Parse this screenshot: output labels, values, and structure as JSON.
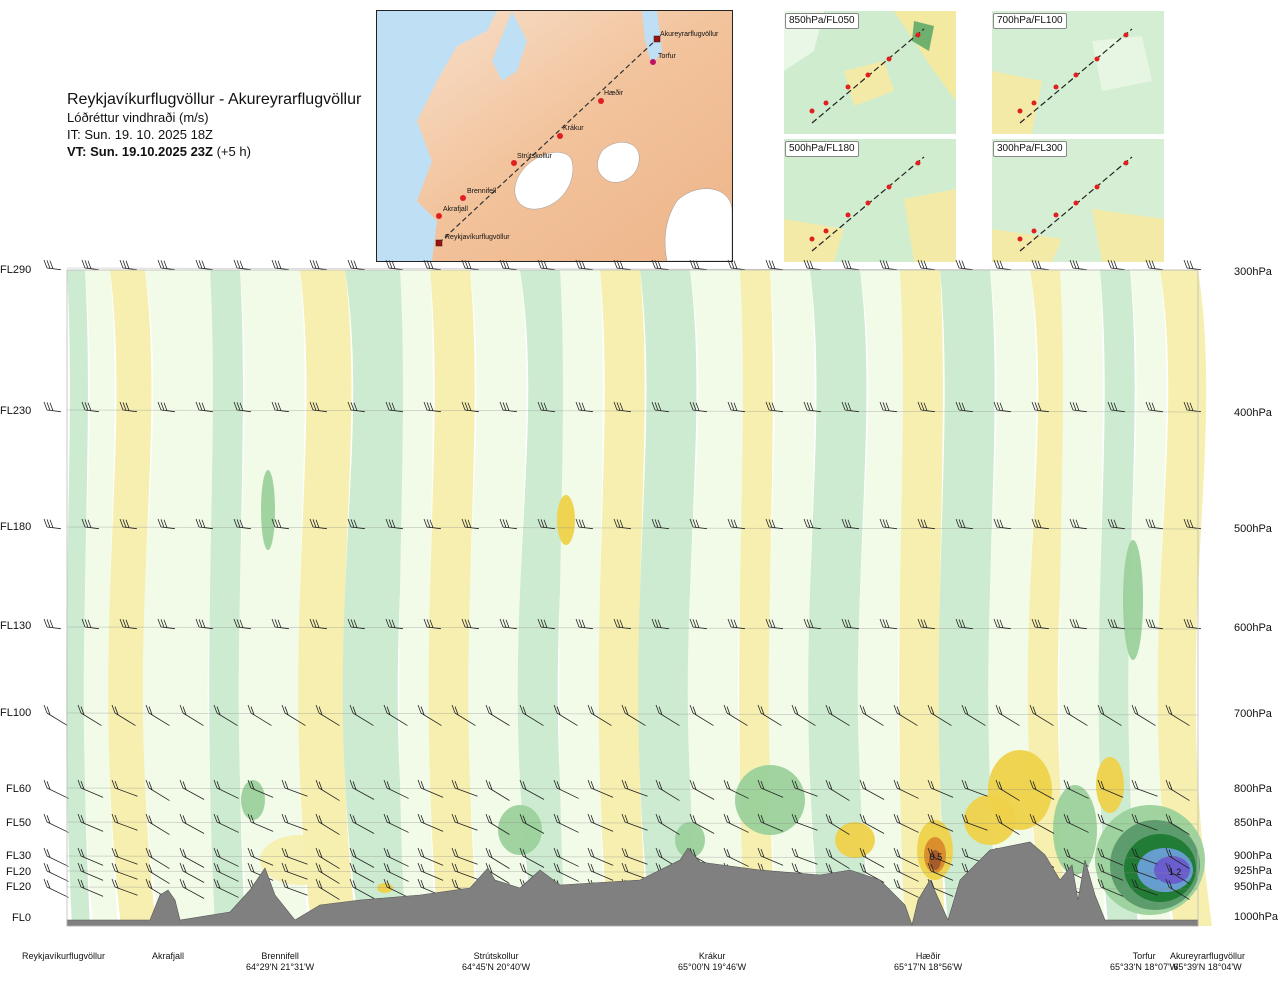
{
  "header": {
    "route_title": "Reykjavíkurflugvöllur - Akureyrarflugvöllur",
    "variable": "Lóðréttur vindhraði (m/s)",
    "init_time": "IT: Sun. 19. 10. 2025 18Z",
    "valid_label": "VT: Sun. 19.10.2025 23Z",
    "valid_offset": "(+5 h)"
  },
  "route_map": {
    "waypoints": [
      "Akureyrarflugvöllur",
      "Torfur",
      "Hæðir",
      "Krákur",
      "Strútskollur",
      "Brennifell",
      "Akrafjall",
      "Reykjavíkurflugvöllur"
    ]
  },
  "mini_maps": [
    {
      "title": "850hPa/FL050"
    },
    {
      "title": "700hPa/FL100"
    },
    {
      "title": "500hPa/FL180"
    },
    {
      "title": "300hPa/FL300"
    }
  ],
  "chart_data": {
    "type": "heatmap",
    "title": "Reykjavíkurflugvöllur - Akureyrarflugvöllur",
    "variable": "Lóðréttur vindhraði (m/s)",
    "flight_levels": [
      "FL290",
      "FL230",
      "FL180",
      "FL130",
      "FL100",
      "FL60",
      "FL50",
      "FL30",
      "FL20",
      "FL20",
      "FL0"
    ],
    "pressure_levels": [
      "300hPa",
      "400hPa",
      "500hPa",
      "600hPa",
      "700hPa",
      "800hPa",
      "850hPa",
      "900hPa",
      "925hPa",
      "950hPa",
      "1000hPa"
    ],
    "locations": [
      {
        "name": "Reykjavíkurflugvöllur",
        "coords": ""
      },
      {
        "name": "Akrafjall",
        "coords": ""
      },
      {
        "name": "Brennifell",
        "coords": "64°29'N 21°31'W"
      },
      {
        "name": "Strútskollur",
        "coords": "64°45'N 20°40'W"
      },
      {
        "name": "Krákur",
        "coords": "65°00'N 19°46'W"
      },
      {
        "name": "Hæðir",
        "coords": "65°17'N 18°56'W"
      },
      {
        "name": "Torfur",
        "coords": "65°33'N 18°07'W"
      },
      {
        "name": "Akureyrarflugvöllur",
        "coords": "65°39'N 18°04'W"
      }
    ],
    "annotations": [
      {
        "text": "0.5",
        "near": "Hæðir",
        "level": "FL30"
      },
      {
        "text": "1.2",
        "near": "Akureyrarflugvöllur",
        "level": "FL30"
      }
    ],
    "colors": {
      "strong_down": "#5a9a6a",
      "mod_down": "#9bd19b",
      "weak_down": "#cdebd0",
      "near_zero": "#f2fbe8",
      "weak_up": "#f6efb0",
      "mod_up": "#eed24a",
      "strong_up": "#d98a2b",
      "extreme_up": "#a35a2a",
      "very_strong_down": "#1e7a34",
      "extreme_down": "#6a5acd",
      "terrain": "#808080"
    }
  }
}
